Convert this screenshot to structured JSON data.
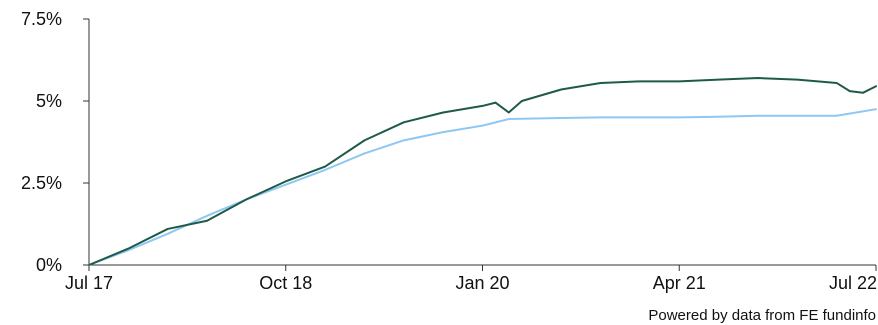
{
  "chart_data": {
    "type": "line",
    "title": "",
    "xlabel": "",
    "ylabel": "",
    "x_tick_labels": [
      "Jul 17",
      "Oct 18",
      "Jan 20",
      "Apr 21",
      "Jul 22"
    ],
    "y_tick_labels": [
      "0%",
      "2.5%",
      "5%",
      "7.5%"
    ],
    "y_tick_values": [
      0,
      2.5,
      5,
      7.5
    ],
    "ylim": [
      0,
      7.5
    ],
    "xlim": [
      "Jul 17",
      "Jul 22"
    ],
    "grid": false,
    "legend": "none",
    "series": [
      {
        "color": "#1f5a48",
        "x": [
          "Jul 17",
          "Oct 17",
          "Jan 18",
          "Apr 18",
          "Jul 18",
          "Oct 18",
          "Jan 19",
          "Apr 19",
          "Jul 19",
          "Oct 19",
          "Jan 20",
          "Feb 20",
          "Mar 20",
          "Apr 20",
          "Jul 20",
          "Oct 20",
          "Jan 21",
          "Apr 21",
          "Jul 21",
          "Oct 21",
          "Jan 22",
          "Apr 22",
          "May 22",
          "Jun 22",
          "Jul 22"
        ],
        "values": [
          0.0,
          0.5,
          1.1,
          1.35,
          2.0,
          2.55,
          3.0,
          3.8,
          4.35,
          4.65,
          4.85,
          4.95,
          4.65,
          5.0,
          5.35,
          5.55,
          5.6,
          5.6,
          5.65,
          5.7,
          5.65,
          5.55,
          5.3,
          5.25,
          5.45
        ]
      },
      {
        "color": "#8ec8f2",
        "x": [
          "Jul 17",
          "Oct 17",
          "Jan 18",
          "Apr 18",
          "Jul 18",
          "Oct 18",
          "Jan 19",
          "Apr 19",
          "Jul 19",
          "Oct 19",
          "Jan 20",
          "Mar 20",
          "Jul 20",
          "Oct 20",
          "Jan 21",
          "Apr 21",
          "Jul 21",
          "Oct 21",
          "Jan 22",
          "Apr 22",
          "Jul 22"
        ],
        "values": [
          0.0,
          0.45,
          0.95,
          1.5,
          2.0,
          2.45,
          2.9,
          3.4,
          3.8,
          4.05,
          4.25,
          4.45,
          4.48,
          4.5,
          4.5,
          4.5,
          4.52,
          4.55,
          4.55,
          4.55,
          4.75
        ]
      }
    ]
  },
  "footer": {
    "attribution": "Powered by data from FE fundinfo"
  }
}
